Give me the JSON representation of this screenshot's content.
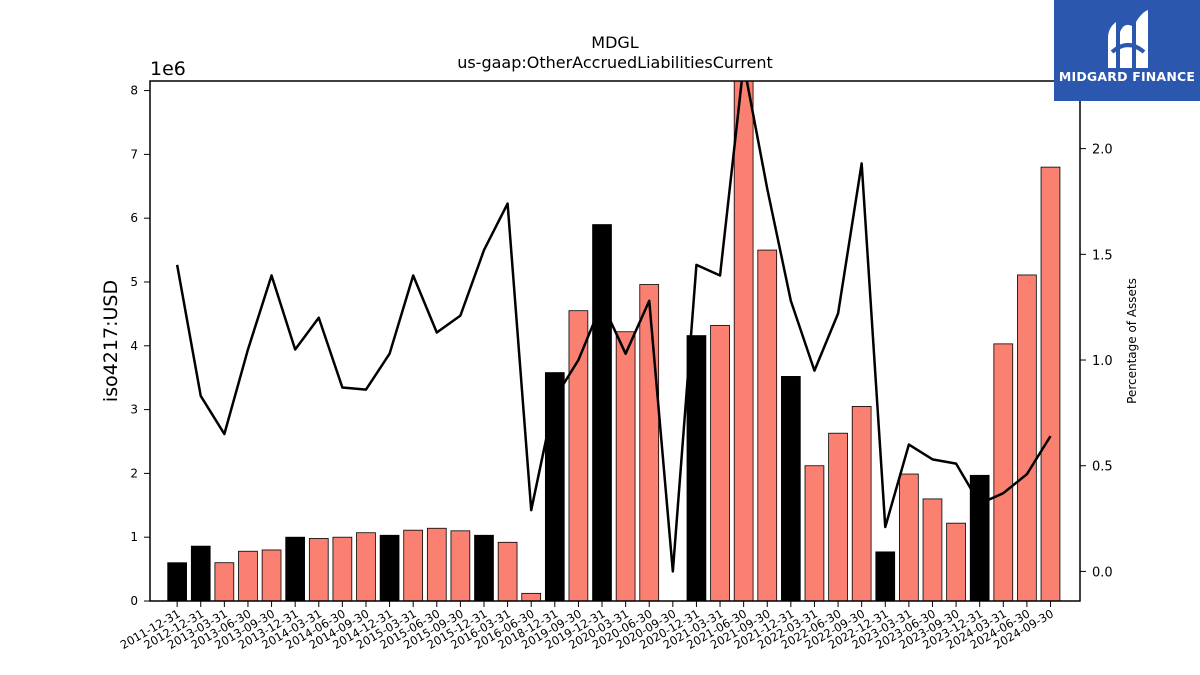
{
  "chart_data": {
    "type": "bar",
    "title": "MDGL",
    "subtitle": "us-gaap:OtherAccruedLiabilitiesCurrent",
    "ylabel": "iso4217:USD",
    "y2label": "Percentage of Assets",
    "y_offset_label": "1e6",
    "ylim": [
      0,
      8.15
    ],
    "y2lim": [
      -0.14,
      2.32
    ],
    "y_ticks": [
      "0",
      "1",
      "2",
      "3",
      "4",
      "5",
      "6",
      "7",
      "8"
    ],
    "y2_ticks": [
      "0.0",
      "0.5",
      "1.0",
      "1.5",
      "2.0"
    ],
    "grid": false,
    "colors": {
      "annual": "#000000",
      "quarterly": "#fa8072",
      "line": "#000000"
    },
    "categories": [
      "2011-12-31",
      "2012-12-31",
      "2013-03-31",
      "2013-06-30",
      "2013-09-30",
      "2013-12-31",
      "2014-03-31",
      "2014-06-30",
      "2014-09-30",
      "2014-12-31",
      "2015-03-31",
      "2015-06-30",
      "2015-09-30",
      "2015-12-31",
      "2016-03-31",
      "2016-06-30",
      "2018-12-31",
      "2019-09-30",
      "2019-12-31",
      "2020-03-31",
      "2020-06-30",
      "2020-09-30",
      "2020-12-31",
      "2021-03-31",
      "2021-06-30",
      "2021-09-30",
      "2021-12-31",
      "2022-03-31",
      "2022-06-30",
      "2022-09-30",
      "2022-12-31",
      "2023-03-31",
      "2023-06-30",
      "2023-09-30",
      "2023-12-31",
      "2024-03-31",
      "2024-06-30",
      "2024-09-30"
    ],
    "values": [
      0.6,
      0.86,
      0.6,
      0.78,
      0.8,
      1.0,
      0.98,
      1.0,
      1.07,
      1.03,
      1.11,
      1.14,
      1.1,
      1.03,
      0.92,
      0.12,
      3.58,
      4.55,
      5.9,
      4.22,
      4.96,
      0,
      4.16,
      4.32,
      8.15,
      5.5,
      3.52,
      2.12,
      2.63,
      3.05,
      0.77,
      1.99,
      1.6,
      1.22,
      1.97,
      4.03,
      5.11,
      6.8
    ],
    "bar_type": [
      "annual",
      "annual",
      "quarterly",
      "quarterly",
      "quarterly",
      "annual",
      "quarterly",
      "quarterly",
      "quarterly",
      "annual",
      "quarterly",
      "quarterly",
      "quarterly",
      "annual",
      "quarterly",
      "quarterly",
      "annual",
      "quarterly",
      "annual",
      "quarterly",
      "quarterly",
      "quarterly",
      "annual",
      "quarterly",
      "quarterly",
      "quarterly",
      "annual",
      "quarterly",
      "quarterly",
      "quarterly",
      "annual",
      "quarterly",
      "quarterly",
      "quarterly",
      "annual",
      "quarterly",
      "quarterly",
      "quarterly"
    ],
    "pct_of_assets": [
      1.45,
      0.83,
      0.65,
      1.05,
      1.4,
      1.05,
      1.2,
      0.87,
      0.86,
      1.03,
      1.4,
      1.13,
      1.21,
      1.52,
      1.74,
      0.29,
      0.82,
      1.0,
      1.27,
      1.03,
      1.28,
      0.0,
      1.45,
      1.4,
      2.4,
      1.81,
      1.28,
      0.95,
      1.22,
      1.93,
      0.21,
      0.6,
      0.53,
      0.51,
      0.32,
      0.37,
      0.46,
      0.64
    ]
  },
  "logo": {
    "text": "MIDGARD FINANCE",
    "icon": "midgard-logo-icon"
  }
}
